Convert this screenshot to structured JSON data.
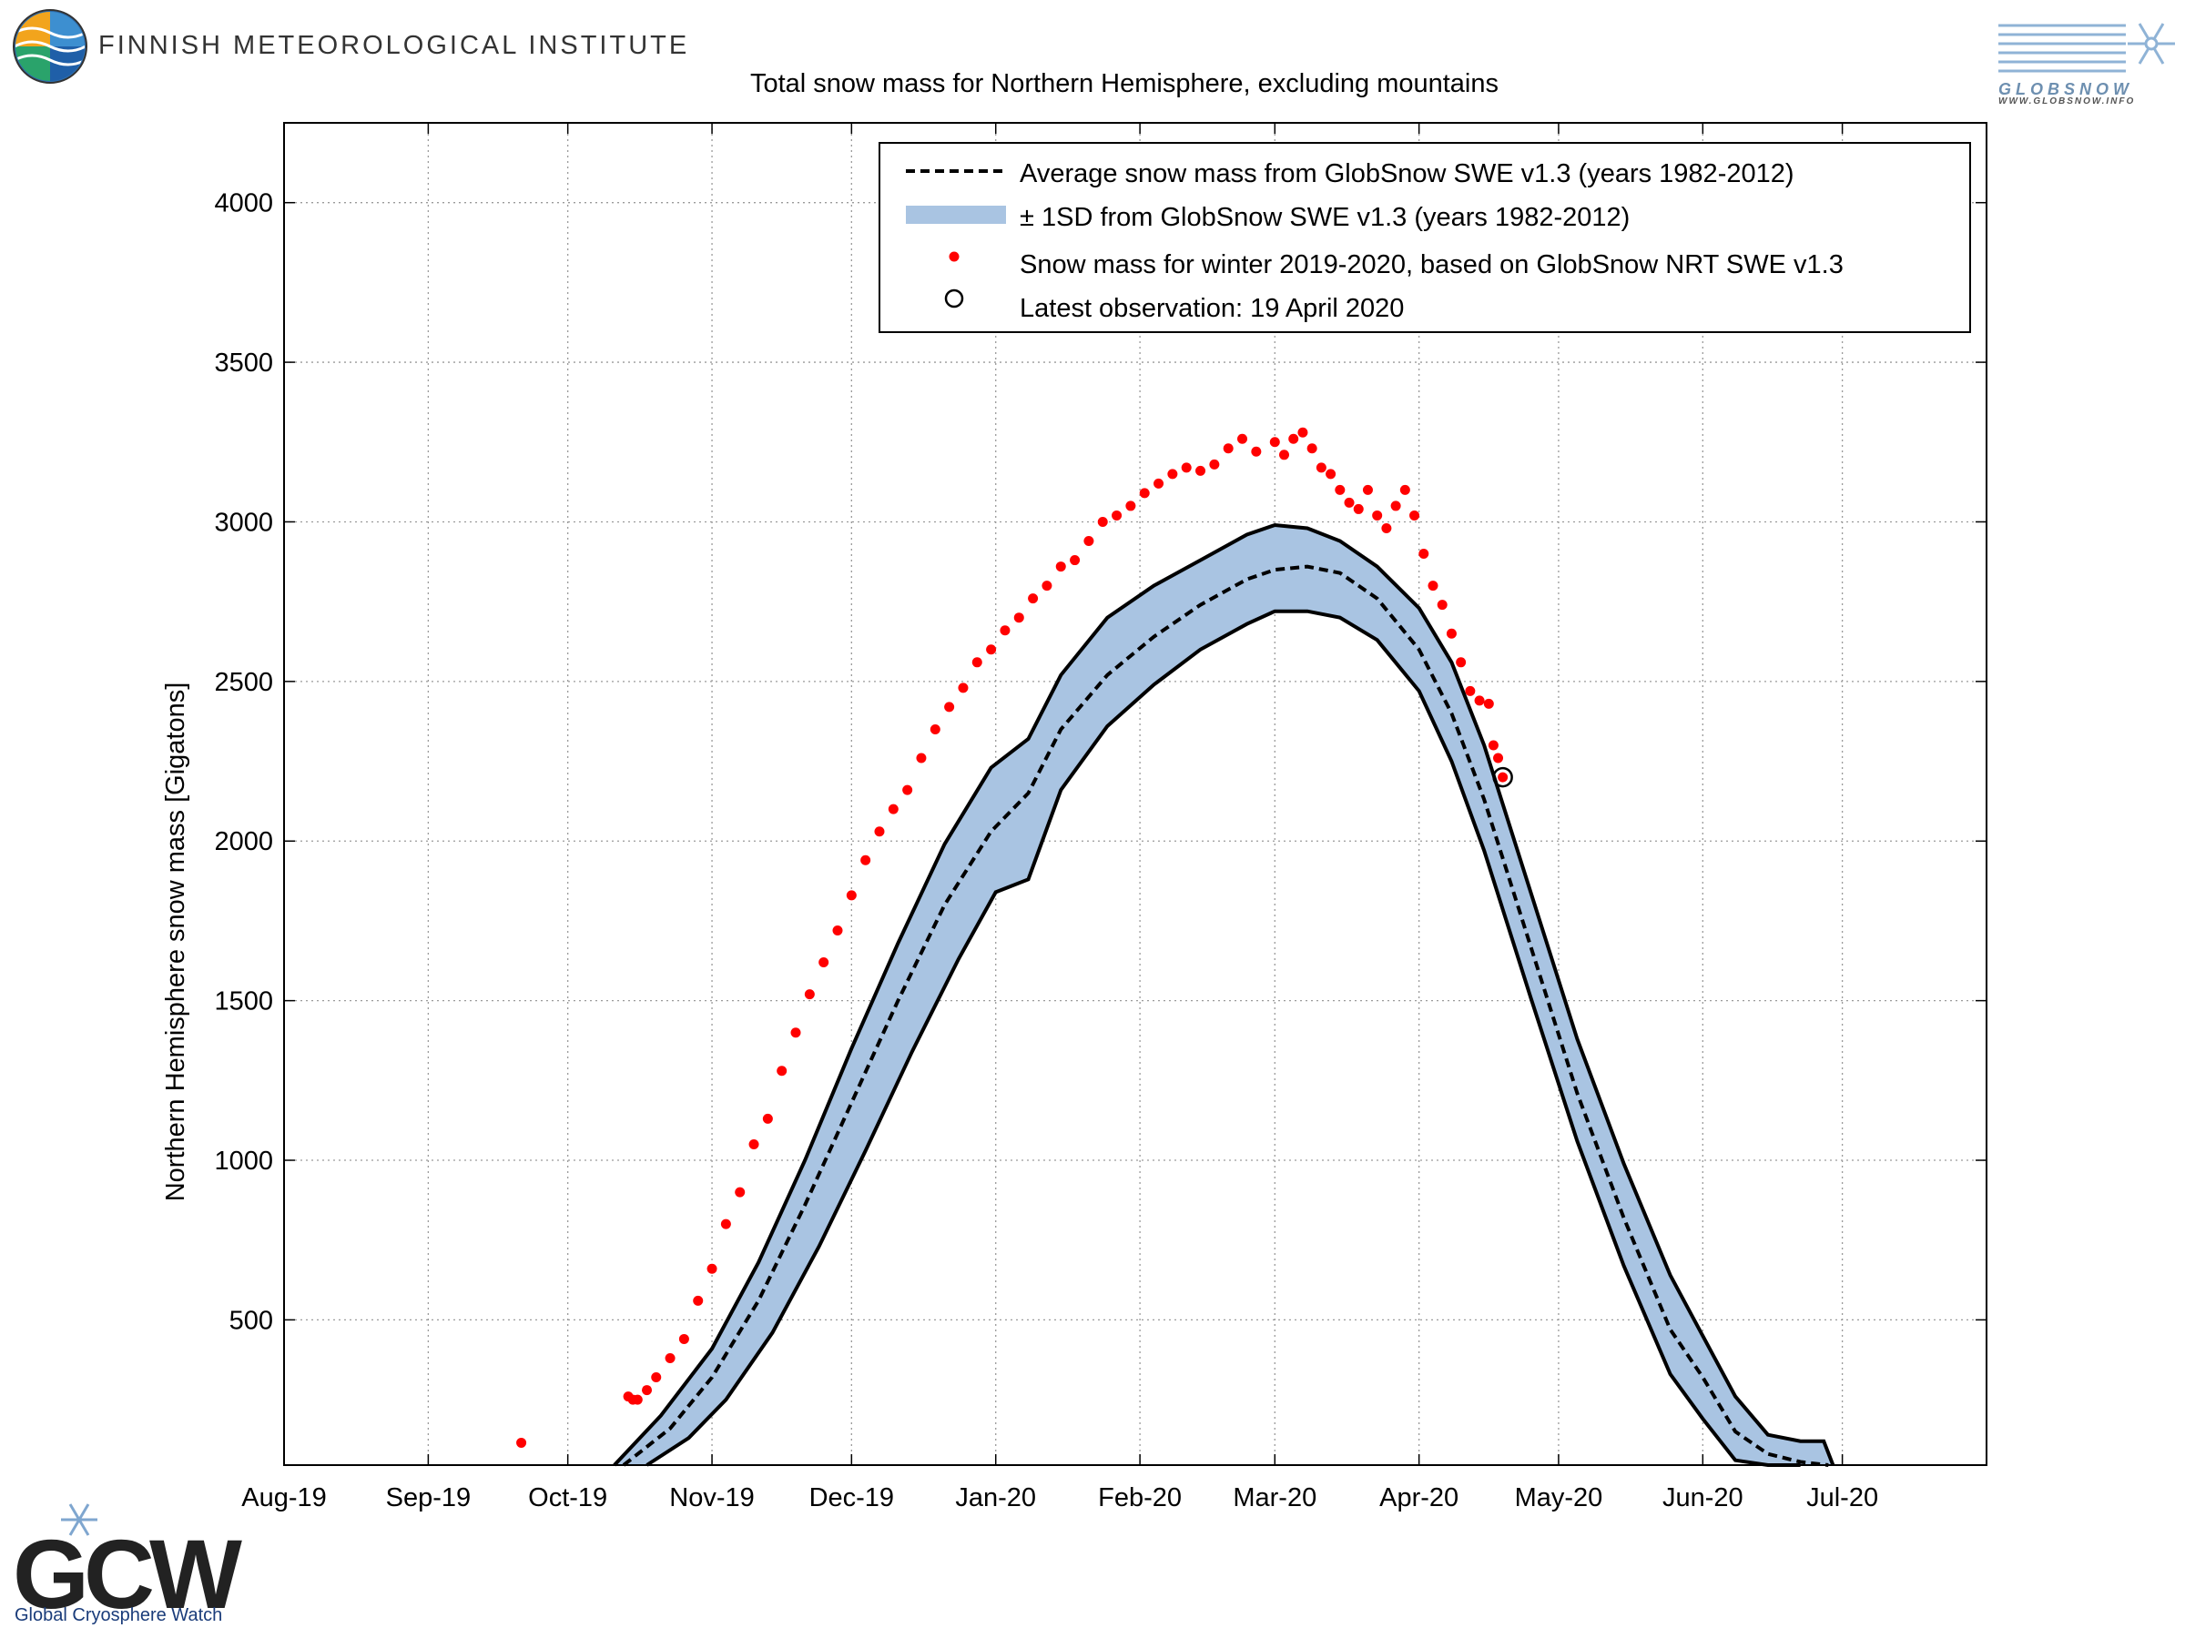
{
  "header": {
    "institute_name": "FINNISH METEOROLOGICAL INSTITUTE",
    "globsnow_logo_text": "GLOBSNOW",
    "globsnow_url": "WWW.GLOBSNOW.INFO"
  },
  "footer": {
    "gcw_letters": "GCW",
    "gcw_caption": "Global Cryosphere Watch"
  },
  "chart_data": {
    "type": "line",
    "title": "Total snow mass for Northern Hemisphere, excluding mountains",
    "xlabel": "",
    "ylabel": "Northern Hemisphere snow mass [Gigatons]",
    "x_tick_labels": [
      "Aug-19",
      "Sep-19",
      "Oct-19",
      "Nov-19",
      "Dec-19",
      "Jan-20",
      "Feb-20",
      "Mar-20",
      "Apr-20",
      "May-20",
      "Jun-20",
      "Jul-20"
    ],
    "x_ticks": [
      "2019-08-01",
      "2019-09-01",
      "2019-10-01",
      "2019-11-01",
      "2019-12-01",
      "2020-01-01",
      "2020-02-01",
      "2020-03-01",
      "2020-04-01",
      "2020-05-01",
      "2020-06-01",
      "2020-07-01"
    ],
    "y_ticks": [
      500,
      1000,
      1500,
      2000,
      2500,
      3000,
      3500,
      4000
    ],
    "xlim": [
      "2019-08-01",
      "2020-08-01"
    ],
    "ylim": [
      45,
      4250
    ],
    "grid": true,
    "legend_position": "top-right",
    "legend": [
      "Average snow mass from GlobSnow SWE v1.3 (years 1982-2012)",
      "± 1SD from GlobSnow SWE v1.3 (years 1982-2012)",
      "Snow mass for winter 2019-2020, based on GlobSnow NRT SWE v1.3",
      "Latest observation: 19 April 2020"
    ],
    "colors": {
      "band": "#a9c4e2",
      "mean_line": "#000000",
      "observations": "#ff0000",
      "latest_marker": "#000000"
    },
    "series": [
      {
        "name": "Average snow mass from GlobSnow SWE v1.3 (years 1982-2012)",
        "style": "dashed",
        "x": [
          "2019-10-13",
          "2019-10-23",
          "2019-11-01",
          "2019-11-11",
          "2019-11-21",
          "2019-12-01",
          "2019-12-11",
          "2019-12-21",
          "2019-12-31",
          "2020-01-08",
          "2020-01-15",
          "2020-01-25",
          "2020-02-04",
          "2020-02-14",
          "2020-02-24",
          "2020-03-01",
          "2020-03-08",
          "2020-03-15",
          "2020-03-23",
          "2020-04-01",
          "2020-04-08",
          "2020-04-15",
          "2020-04-25",
          "2020-05-05",
          "2020-05-15",
          "2020-05-25",
          "2020-06-01",
          "2020-06-08",
          "2020-06-15",
          "2020-06-22",
          "2020-06-28"
        ],
        "values": [
          45,
          160,
          320,
          560,
          860,
          1180,
          1500,
          1800,
          2030,
          2150,
          2350,
          2520,
          2640,
          2740,
          2820,
          2850,
          2860,
          2840,
          2760,
          2600,
          2400,
          2130,
          1670,
          1210,
          820,
          470,
          320,
          150,
          80,
          55,
          45
        ]
      },
      {
        "name": "Mean + 1SD",
        "style": "solid",
        "x": [
          "2019-10-11",
          "2019-10-21",
          "2019-11-01",
          "2019-11-11",
          "2019-11-21",
          "2019-12-01",
          "2019-12-11",
          "2019-12-21",
          "2019-12-31",
          "2020-01-08",
          "2020-01-15",
          "2020-01-25",
          "2020-02-04",
          "2020-02-14",
          "2020-02-24",
          "2020-03-01",
          "2020-03-08",
          "2020-03-15",
          "2020-03-23",
          "2020-04-01",
          "2020-04-08",
          "2020-04-15",
          "2020-04-25",
          "2020-05-05",
          "2020-05-15",
          "2020-05-25",
          "2020-06-01",
          "2020-06-08",
          "2020-06-15",
          "2020-06-22",
          "2020-06-27",
          "2020-06-29"
        ],
        "values": [
          45,
          200,
          410,
          680,
          1000,
          1350,
          1680,
          1990,
          2230,
          2320,
          2520,
          2700,
          2800,
          2880,
          2960,
          2990,
          2980,
          2940,
          2860,
          2730,
          2560,
          2300,
          1840,
          1380,
          990,
          640,
          450,
          260,
          140,
          120,
          120,
          45
        ]
      },
      {
        "name": "Mean - 1SD",
        "style": "solid",
        "x": [
          "2019-10-18",
          "2019-10-27",
          "2019-11-04",
          "2019-11-14",
          "2019-11-24",
          "2019-12-04",
          "2019-12-14",
          "2019-12-24",
          "2020-01-01",
          "2020-01-08",
          "2020-01-15",
          "2020-01-25",
          "2020-02-04",
          "2020-02-14",
          "2020-02-24",
          "2020-03-01",
          "2020-03-08",
          "2020-03-15",
          "2020-03-23",
          "2020-04-01",
          "2020-04-08",
          "2020-04-15",
          "2020-04-25",
          "2020-05-05",
          "2020-05-15",
          "2020-05-25",
          "2020-06-01",
          "2020-06-08",
          "2020-06-15",
          "2020-06-22"
        ],
        "values": [
          45,
          130,
          250,
          460,
          730,
          1030,
          1340,
          1630,
          1840,
          1880,
          2160,
          2360,
          2490,
          2600,
          2680,
          2720,
          2720,
          2700,
          2630,
          2470,
          2250,
          1970,
          1510,
          1060,
          670,
          330,
          190,
          60,
          45,
          45
        ]
      },
      {
        "name": "Snow mass for winter 2019-2020, based on GlobSnow NRT SWE v1.3",
        "style": "points",
        "x": [
          "2019-09-21",
          "2019-10-14",
          "2019-10-15",
          "2019-10-16",
          "2019-10-18",
          "2019-10-20",
          "2019-10-23",
          "2019-10-26",
          "2019-10-29",
          "2019-11-01",
          "2019-11-04",
          "2019-11-07",
          "2019-11-10",
          "2019-11-13",
          "2019-11-16",
          "2019-11-19",
          "2019-11-22",
          "2019-11-25",
          "2019-11-28",
          "2019-12-01",
          "2019-12-04",
          "2019-12-07",
          "2019-12-10",
          "2019-12-13",
          "2019-12-16",
          "2019-12-19",
          "2019-12-22",
          "2019-12-25",
          "2019-12-28",
          "2019-12-31",
          "2020-01-03",
          "2020-01-06",
          "2020-01-09",
          "2020-01-12",
          "2020-01-15",
          "2020-01-18",
          "2020-01-21",
          "2020-01-24",
          "2020-01-27",
          "2020-01-30",
          "2020-02-02",
          "2020-02-05",
          "2020-02-08",
          "2020-02-11",
          "2020-02-14",
          "2020-02-17",
          "2020-02-20",
          "2020-02-23",
          "2020-02-26",
          "2020-03-01",
          "2020-03-03",
          "2020-03-05",
          "2020-03-07",
          "2020-03-09",
          "2020-03-11",
          "2020-03-13",
          "2020-03-15",
          "2020-03-17",
          "2020-03-19",
          "2020-03-21",
          "2020-03-23",
          "2020-03-25",
          "2020-03-27",
          "2020-03-29",
          "2020-03-31",
          "2020-04-02",
          "2020-04-04",
          "2020-04-06",
          "2020-04-08",
          "2020-04-10",
          "2020-04-12",
          "2020-04-14",
          "2020-04-16",
          "2020-04-17",
          "2020-04-18",
          "2020-04-19"
        ],
        "values": [
          115,
          260,
          250,
          250,
          280,
          320,
          380,
          440,
          560,
          660,
          800,
          900,
          1050,
          1130,
          1280,
          1400,
          1520,
          1620,
          1720,
          1830,
          1940,
          2030,
          2100,
          2160,
          2260,
          2350,
          2420,
          2480,
          2560,
          2600,
          2660,
          2700,
          2760,
          2800,
          2860,
          2880,
          2940,
          3000,
          3020,
          3050,
          3090,
          3120,
          3150,
          3170,
          3160,
          3180,
          3230,
          3260,
          3220,
          3250,
          3210,
          3260,
          3280,
          3230,
          3170,
          3150,
          3100,
          3060,
          3040,
          3100,
          3020,
          2980,
          3050,
          3100,
          3020,
          2900,
          2800,
          2740,
          2650,
          2560,
          2470,
          2440,
          2430,
          2300,
          2260,
          2200
        ]
      },
      {
        "name": "Latest observation: 19 April 2020",
        "style": "circle",
        "x": [
          "2020-04-19"
        ],
        "values": [
          2200
        ]
      }
    ]
  }
}
